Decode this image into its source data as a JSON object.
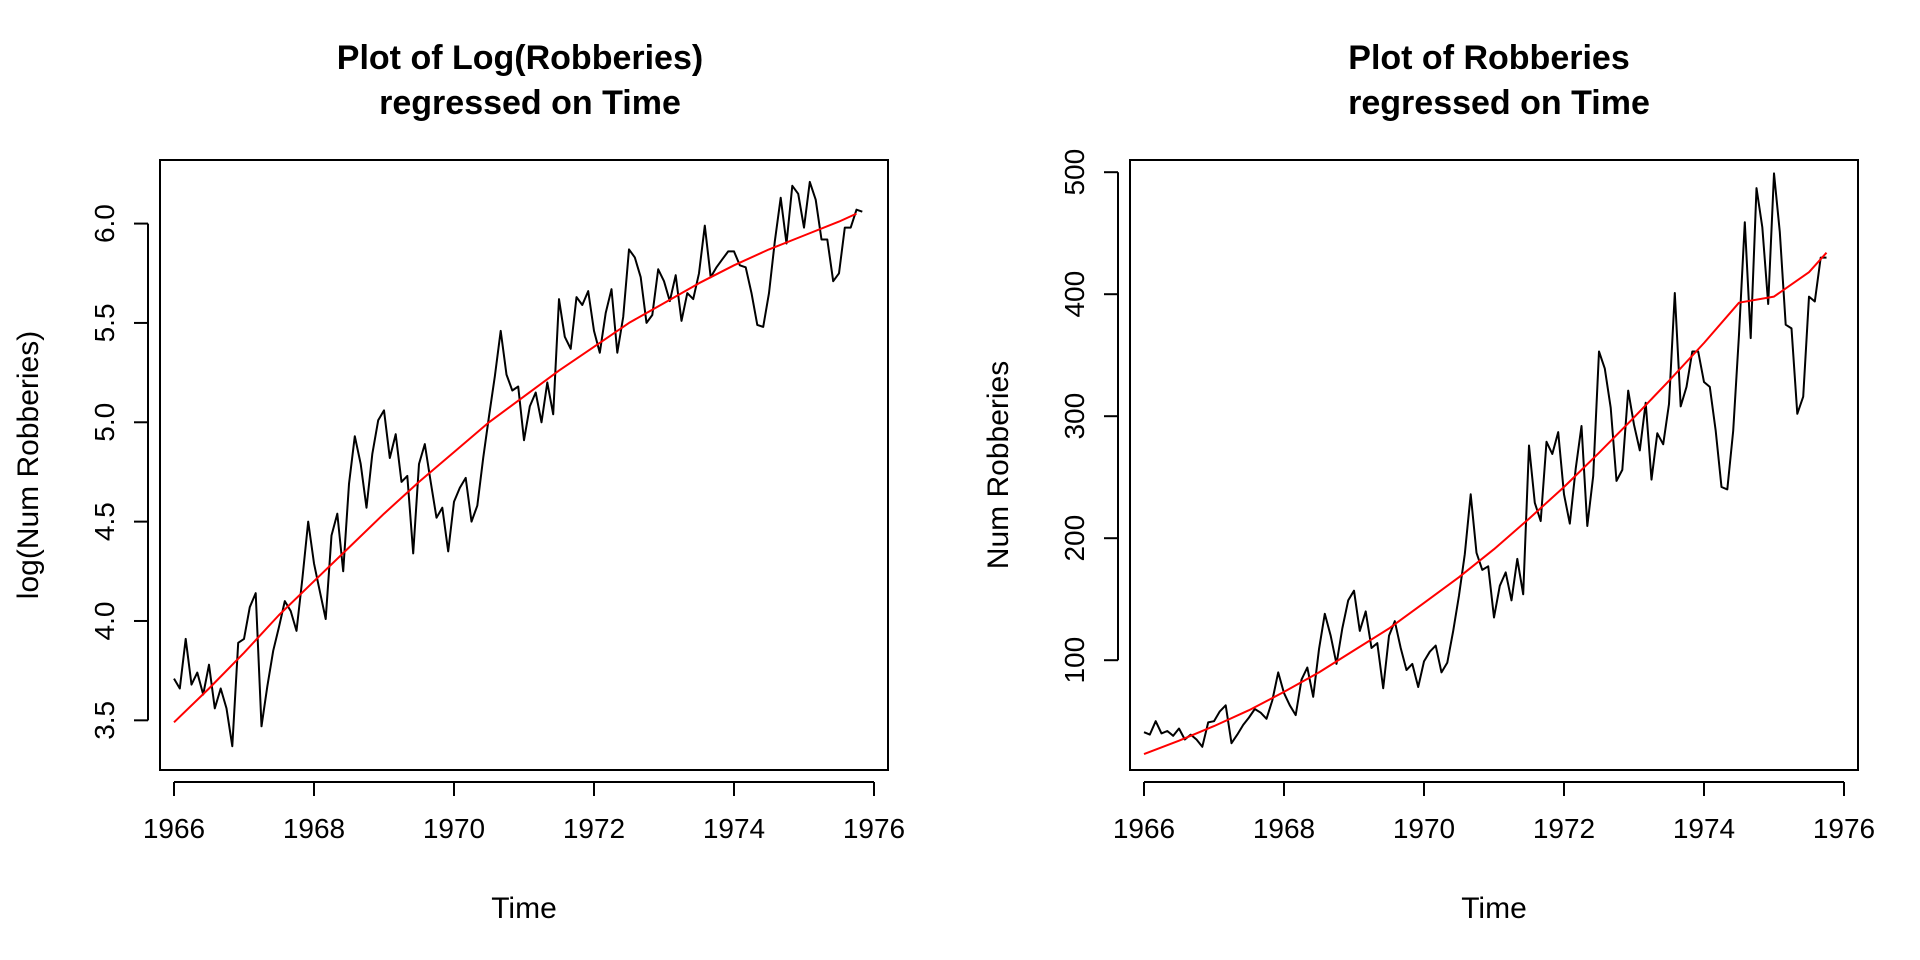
{
  "chart_data": [
    {
      "type": "line",
      "title": [
        "Plot of Log(Robberies)",
        "regressed on Time"
      ],
      "xlabel": "Time",
      "ylabel": "log(Num Robberies)",
      "xlim": [
        1965.8,
        1976.2
      ],
      "ylim": [
        3.25,
        6.32
      ],
      "xticks": [
        1966,
        1968,
        1970,
        1972,
        1974,
        1976
      ],
      "xtick_labels": [
        "1966",
        "1968",
        "1970",
        "1972",
        "1974",
        "1976"
      ],
      "yticks": [
        3.5,
        4.0,
        4.5,
        5.0,
        5.5,
        6.0
      ],
      "ytick_labels": [
        "3.5",
        "4.0",
        "4.5",
        "5.0",
        "5.5",
        "6.0"
      ],
      "grid": false,
      "series": [
        {
          "color": "#000000",
          "x_start": 1966.0,
          "x_step": 0.0833333,
          "values": [
            3.71,
            3.66,
            3.91,
            3.68,
            3.74,
            3.63,
            3.78,
            3.56,
            3.66,
            3.56,
            3.37,
            3.89,
            3.91,
            4.07,
            4.14,
            3.47,
            3.67,
            3.85,
            3.97,
            4.1,
            4.05,
            3.95,
            4.21,
            4.5,
            4.29,
            4.15,
            4.01,
            4.43,
            4.54,
            4.25,
            4.69,
            4.93,
            4.79,
            4.57,
            4.84,
            5.01,
            5.06,
            4.82,
            4.94,
            4.7,
            4.73,
            4.34,
            4.79,
            4.89,
            4.7,
            4.52,
            4.57,
            4.35,
            4.6,
            4.67,
            4.72,
            4.5,
            4.58,
            4.82,
            5.03,
            5.23,
            5.46,
            5.24,
            5.16,
            5.18,
            4.91,
            5.08,
            5.15,
            5.0,
            5.2,
            5.04,
            5.62,
            5.43,
            5.37,
            5.63,
            5.59,
            5.66,
            5.46,
            5.35,
            5.55,
            5.67,
            5.35,
            5.53,
            5.87,
            5.83,
            5.73,
            5.5,
            5.54,
            5.77,
            5.71,
            5.61,
            5.74,
            5.51,
            5.65,
            5.62,
            5.75,
            5.99,
            5.73,
            5.78,
            5.82,
            5.86,
            5.86,
            5.79,
            5.78,
            5.65,
            5.49,
            5.48,
            5.65,
            5.91,
            6.13,
            5.9,
            6.19,
            6.15,
            5.98,
            6.21,
            6.12,
            5.92,
            5.92,
            5.71,
            5.75,
            5.98,
            5.98,
            6.07,
            6.06
          ]
        },
        {
          "color": "#ff0000",
          "x": [
            1966.0,
            1966.5,
            1967.0,
            1967.5,
            1968.0,
            1968.5,
            1969.0,
            1969.5,
            1970.0,
            1970.5,
            1971.0,
            1971.5,
            1972.0,
            1972.5,
            1973.0,
            1973.5,
            1974.0,
            1974.5,
            1975.0,
            1975.5,
            1975.75
          ],
          "values": [
            3.49,
            3.66,
            3.84,
            4.03,
            4.2,
            4.37,
            4.54,
            4.7,
            4.85,
            5.0,
            5.13,
            5.26,
            5.38,
            5.5,
            5.6,
            5.7,
            5.79,
            5.87,
            5.94,
            6.01,
            6.05
          ]
        }
      ]
    },
    {
      "type": "line",
      "title": [
        "Plot of Robberies",
        "regressed on Time"
      ],
      "xlabel": "Time",
      "ylabel": "Num Robberies",
      "xlim": [
        1965.8,
        1976.2
      ],
      "ylim": [
        10,
        510
      ],
      "xticks": [
        1966,
        1968,
        1970,
        1972,
        1974,
        1976
      ],
      "xtick_labels": [
        "1966",
        "1968",
        "1970",
        "1972",
        "1974",
        "1976"
      ],
      "yticks": [
        100,
        200,
        300,
        400,
        500
      ],
      "ytick_labels": [
        "100",
        "200",
        "300",
        "400",
        "500"
      ],
      "grid": false,
      "series": [
        {
          "color": "#000000",
          "x_start": 1966.0,
          "x_step": 0.0833333,
          "values": [
            41,
            39,
            50,
            40,
            42,
            38,
            44,
            35,
            39,
            35,
            29,
            49,
            50,
            58,
            63,
            32,
            39,
            47,
            53,
            60,
            57,
            52,
            67,
            90,
            73,
            63,
            55,
            84,
            94,
            70,
            109,
            138,
            120,
            97,
            126,
            149,
            157,
            124,
            140,
            110,
            114,
            77,
            120,
            132,
            110,
            92,
            97,
            78,
            99,
            107,
            112,
            90,
            98,
            124,
            153,
            187,
            236,
            188,
            174,
            177,
            135,
            161,
            172,
            149,
            183,
            154,
            276,
            229,
            214,
            279,
            269,
            287,
            236,
            212,
            257,
            292,
            210,
            251,
            353,
            339,
            307,
            247,
            256,
            321,
            293,
            272,
            311,
            248,
            286,
            277,
            310,
            401,
            308,
            324,
            353,
            353,
            328,
            324,
            288,
            242,
            240,
            288,
            367,
            459,
            364,
            487,
            455,
            392,
            499,
            451,
            375,
            372,
            302,
            316,
            398,
            394,
            430,
            430
          ]
        },
        {
          "color": "#ff0000",
          "x": [
            1966.0,
            1966.5,
            1967.0,
            1967.5,
            1968.0,
            1968.5,
            1969.0,
            1969.5,
            1970.0,
            1970.5,
            1971.0,
            1971.5,
            1972.0,
            1972.5,
            1973.0,
            1973.5,
            1974.0,
            1974.5,
            1975.0,
            1975.5,
            1975.75
          ],
          "values": [
            23,
            34,
            46,
            59,
            74,
            90,
            108,
            126,
            147,
            168,
            191,
            216,
            242,
            270,
            299,
            329,
            360,
            393,
            398,
            418,
            434
          ]
        }
      ]
    }
  ]
}
